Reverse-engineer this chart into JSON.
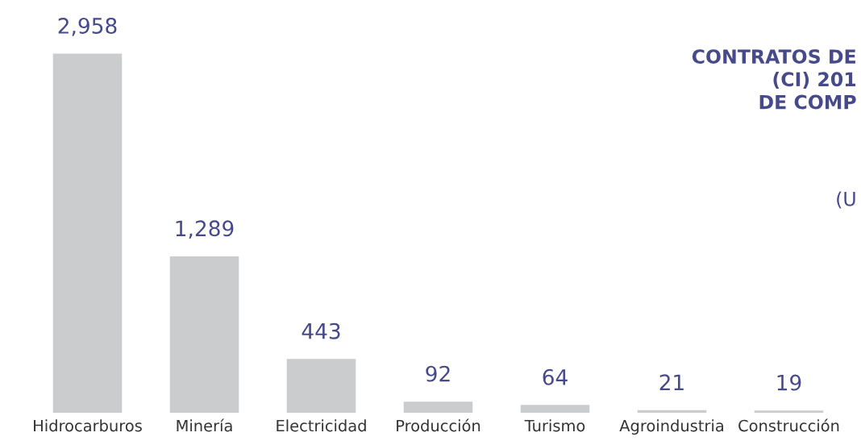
{
  "chart_data": {
    "type": "bar",
    "title": "CONTRATOS DE\n(CI) 201\nDE COMP",
    "subtitle": "(U",
    "categories": [
      "Hidrocarburos",
      "Minería",
      "Electricidad",
      "Producción",
      "Turismo",
      "Agroindustria",
      "Construcción"
    ],
    "values": [
      2958,
      1289,
      443,
      92,
      64,
      21,
      19
    ],
    "value_labels": [
      "2,958",
      "1,289",
      "443",
      "92",
      "64",
      "21",
      "19"
    ],
    "color": "#cbcccd",
    "grid": false,
    "legend": false
  }
}
